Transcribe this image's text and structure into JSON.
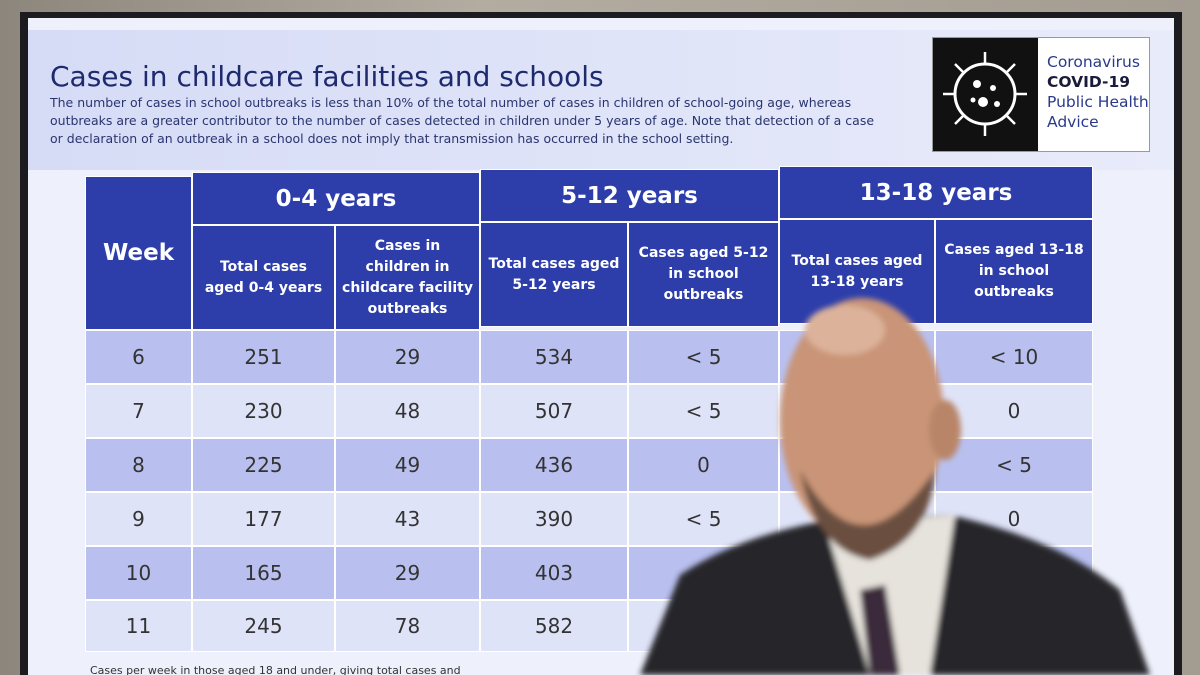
{
  "header": {
    "title": "Cases in childcare facilities and schools",
    "subtitle": "The number of cases in school outbreaks is less than 10% of the total number of cases in children of school-going age, whereas outbreaks are a greater contributor to the number of cases detected in children under 5 years of age. Note that detection of a case or declaration of an outbreak in a school does not imply that transmission has occurred in the school setting.",
    "logo": [
      "Coronavirus",
      "COVID-19",
      "Public Health",
      "Advice"
    ]
  },
  "table": {
    "week_header": "Week",
    "groups": [
      "0-4 years",
      "5-12 years",
      "13-18 years"
    ],
    "columns": [
      "Total cases aged 0-4 years",
      "Cases in children in childcare facility outbreaks",
      "Total cases aged 5-12 years",
      "Cases aged 5-12 in school outbreaks",
      "Total cases aged 13-18 years",
      "Cases aged 13-18 in school outbreaks"
    ],
    "rows": [
      [
        6,
        251,
        29,
        534,
        "< 5",
        null,
        "< 10"
      ],
      [
        7,
        230,
        48,
        507,
        "< 5",
        null,
        0
      ],
      [
        8,
        225,
        49,
        436,
        0,
        null,
        "< 5"
      ],
      [
        9,
        177,
        43,
        390,
        "< 5",
        null,
        0
      ],
      [
        10,
        165,
        29,
        403,
        null,
        null,
        null
      ],
      [
        11,
        245,
        78,
        582,
        null,
        null,
        null
      ]
    ]
  },
  "footer": "Cases per week in those aged 18 and under, giving total cases and"
}
